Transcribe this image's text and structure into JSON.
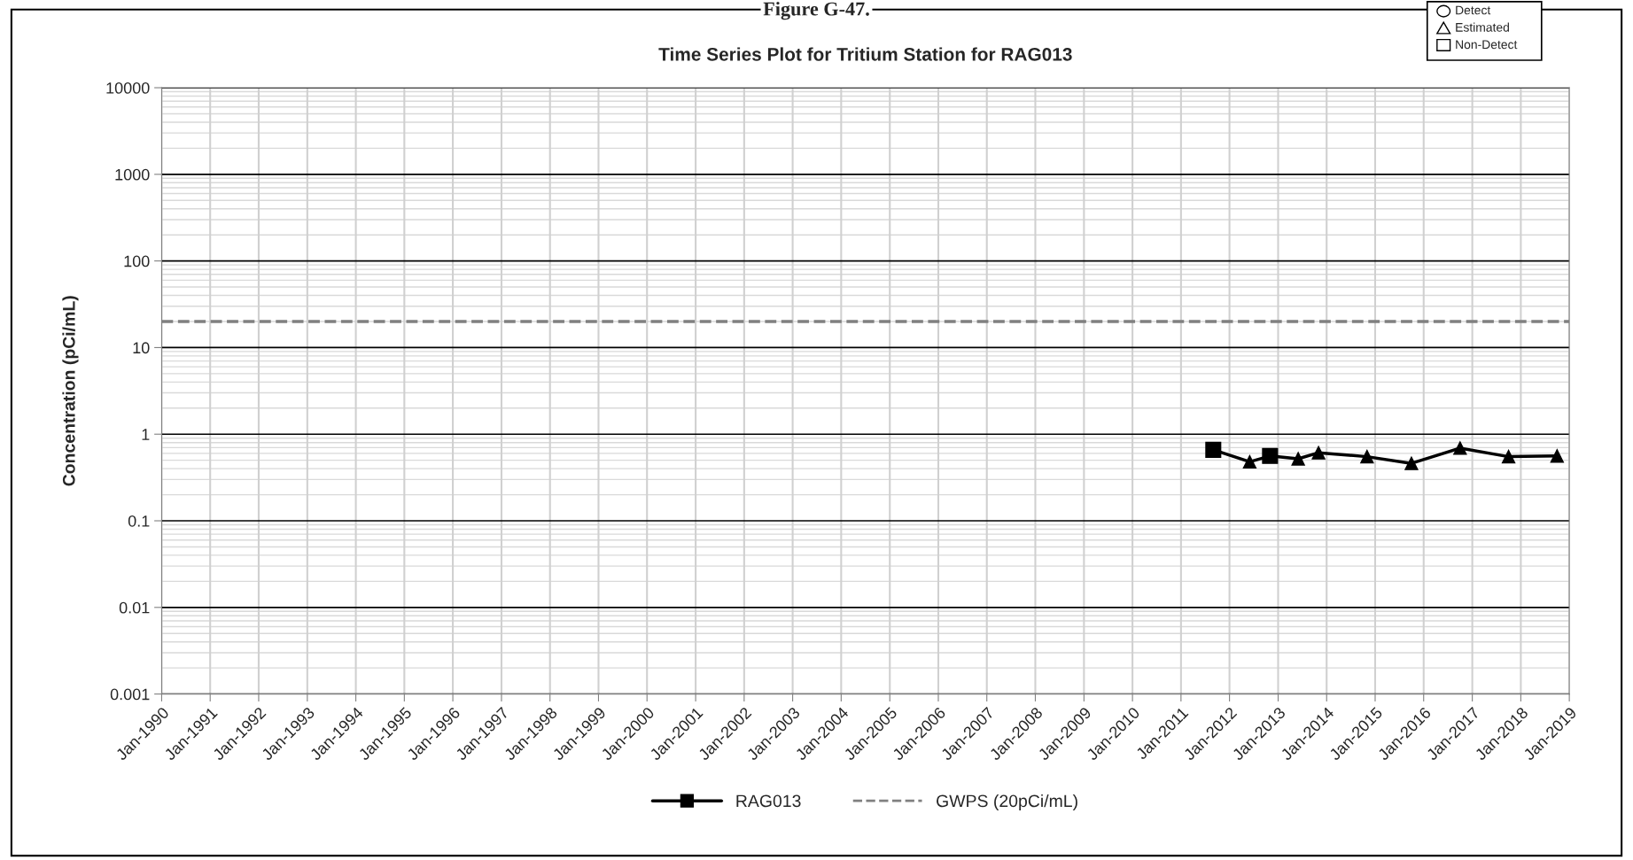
{
  "chart_data": {
    "type": "line",
    "title": "Time Series Plot for Tritium Station for RAG013",
    "ylabel": "Concentration (pCi/mL)",
    "annotations": [
      "Figure G-47.",
      "Detect",
      "Estimated",
      "Non-Detect"
    ],
    "series": [
      {
        "name": "RAG013",
        "color": "#000000",
        "marker": "none",
        "line_style": "solid",
        "x": [
          "2011-09",
          "2012-06",
          "2012-11",
          "2013-06",
          "2013-11",
          "2014-11",
          "2015-10",
          "2016-10",
          "2017-10",
          "2018-10"
        ],
        "values": [
          0.66,
          0.48,
          0.56,
          0.52,
          0.61,
          0.55,
          0.46,
          0.69,
          0.55,
          0.56
        ]
      },
      {
        "type": "scatter",
        "color": "#000000",
        "marker": "square",
        "x": [
          "2011-09",
          "2012-11"
        ],
        "values": [
          0.66,
          0.56
        ]
      },
      {
        "type": "scatter",
        "color": "#000000",
        "marker": "triangle",
        "x": [
          "2012-06",
          "2013-06",
          "2013-11",
          "2014-11",
          "2015-10",
          "2016-10",
          "2017-10",
          "2018-10"
        ],
        "values": [
          0.48,
          0.52,
          0.61,
          0.55,
          0.46,
          0.69,
          0.55,
          0.56
        ]
      }
    ],
    "ref_lines": [
      {
        "axis": "y",
        "value": 20,
        "label": "GWPS (20pCi/mL)",
        "color": "#808080",
        "line_style": "dashed"
      }
    ],
    "log": "y",
    "ylim": [
      0.001,
      10000
    ],
    "yticks": [
      0.001,
      0.01,
      0.1,
      1,
      10,
      100,
      1000,
      10000
    ],
    "xlim": [
      "1990-01",
      "2019-01"
    ],
    "xticks": [
      {
        "value": "1990-01",
        "label": "Jan-1990"
      },
      {
        "value": "1991-01",
        "label": "Jan-1991"
      },
      {
        "value": "1992-01",
        "label": "Jan-1992"
      },
      {
        "value": "1993-01",
        "label": "Jan-1993"
      },
      {
        "value": "1994-01",
        "label": "Jan-1994"
      },
      {
        "value": "1995-01",
        "label": "Jan-1995"
      },
      {
        "value": "1996-01",
        "label": "Jan-1996"
      },
      {
        "value": "1997-01",
        "label": "Jan-1997"
      },
      {
        "value": "1998-01",
        "label": "Jan-1998"
      },
      {
        "value": "1999-01",
        "label": "Jan-1999"
      },
      {
        "value": "2000-01",
        "label": "Jan-2000"
      },
      {
        "value": "2001-01",
        "label": "Jan-2001"
      },
      {
        "value": "2002-01",
        "label": "Jan-2002"
      },
      {
        "value": "2003-01",
        "label": "Jan-2003"
      },
      {
        "value": "2004-01",
        "label": "Jan-2004"
      },
      {
        "value": "2005-01",
        "label": "Jan-2005"
      },
      {
        "value": "2006-01",
        "label": "Jan-2006"
      },
      {
        "value": "2007-01",
        "label": "Jan-2007"
      },
      {
        "value": "2008-01",
        "label": "Jan-2008"
      },
      {
        "value": "2009-01",
        "label": "Jan-2009"
      },
      {
        "value": "2010-01",
        "label": "Jan-2010"
      },
      {
        "value": "2011-01",
        "label": "Jan-2011"
      },
      {
        "value": "2012-01",
        "label": "Jan-2012"
      },
      {
        "value": "2013-01",
        "label": "Jan-2013"
      },
      {
        "value": "2014-01",
        "label": "Jan-2014"
      },
      {
        "value": "2015-01",
        "label": "Jan-2015"
      },
      {
        "value": "2016-01",
        "label": "Jan-2016"
      },
      {
        "value": "2017-01",
        "label": "Jan-2017"
      },
      {
        "value": "2018-01",
        "label": "Jan-2018"
      },
      {
        "value": "2019-01",
        "label": "Jan-2019"
      }
    ],
    "grid": true,
    "legend": "bottom"
  }
}
